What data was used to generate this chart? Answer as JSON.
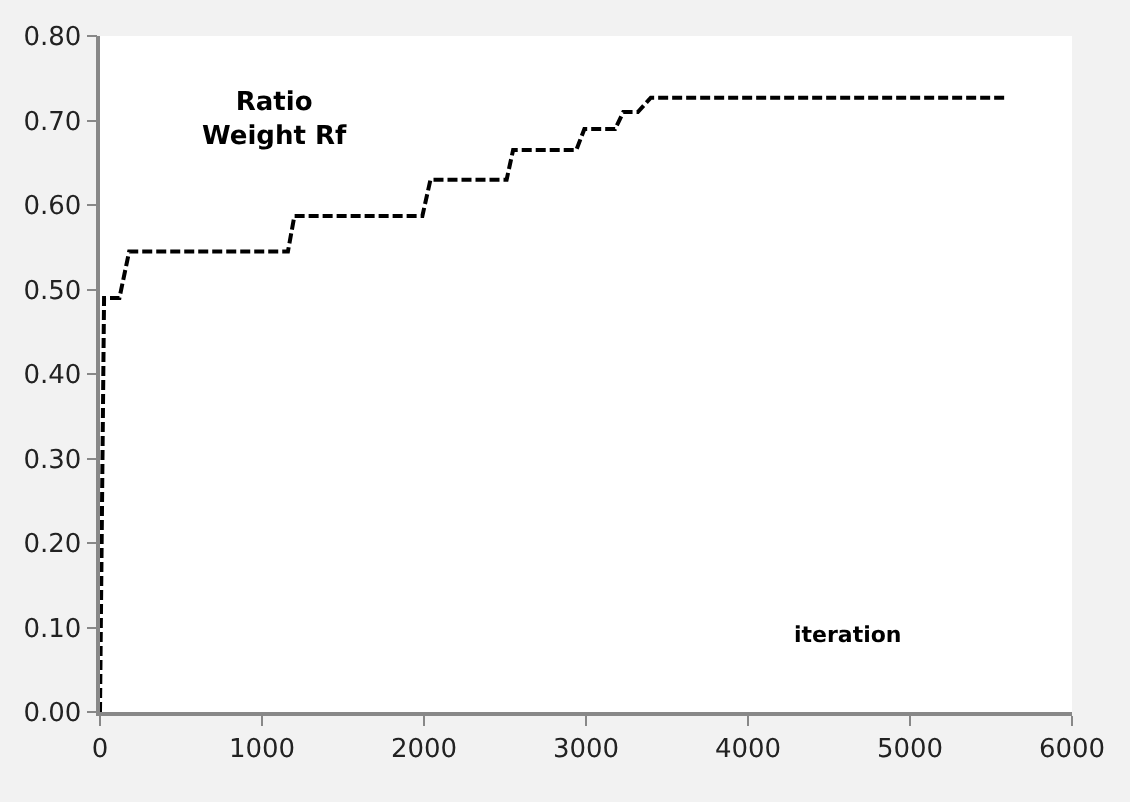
{
  "chart_data": {
    "type": "line",
    "xlabel": "iteration",
    "ylabel": "Ratio\nWeight Rf",
    "x": [
      0,
      25,
      120,
      180,
      1160,
      1200,
      1990,
      2040,
      2510,
      2550,
      2940,
      2990,
      3180,
      3230,
      3320,
      3400,
      5600
    ],
    "series": [
      {
        "color": "#000000",
        "values": [
          0,
          0.49,
          0.49,
          0.545,
          0.545,
          0.587,
          0.587,
          0.63,
          0.63,
          0.665,
          0.665,
          0.69,
          0.69,
          0.71,
          0.71,
          0.727,
          0.727
        ]
      }
    ],
    "line_style": "dashed",
    "marker": "none",
    "xlim": [
      0,
      6000
    ],
    "xticks": [
      0,
      1000,
      2000,
      3000,
      4000,
      5000,
      6000
    ],
    "ylim": [
      0,
      0.8
    ],
    "yticks": [
      {
        "value": 0,
        "label": "0.00"
      },
      {
        "value": 0.1,
        "label": "0.10"
      },
      {
        "value": 0.2,
        "label": "0.20"
      },
      {
        "value": 0.3,
        "label": "0.30"
      },
      {
        "value": 0.4,
        "label": "0.40"
      },
      {
        "value": 0.5,
        "label": "0.50"
      },
      {
        "value": 0.6,
        "label": "0.60"
      },
      {
        "value": 0.7,
        "label": "0.70"
      },
      {
        "value": 0.8,
        "label": "0.80"
      }
    ]
  }
}
